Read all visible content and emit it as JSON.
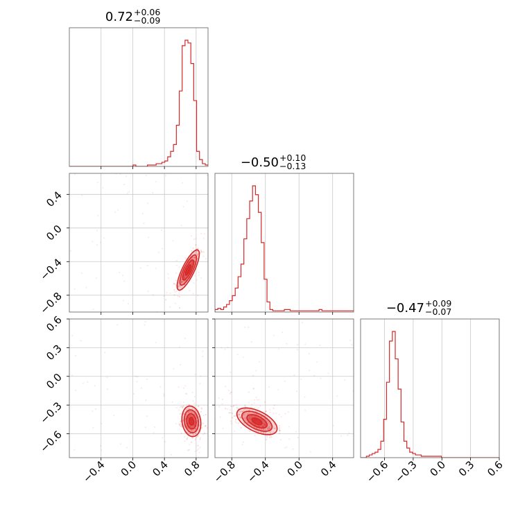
{
  "chart_data": {
    "type": "corner",
    "color": "#d62728",
    "parameters": [
      {
        "title": {
          "value": "0.72",
          "upper": "+0.06",
          "lower": "−0.09"
        },
        "range": [
          -0.8,
          0.95
        ],
        "ticks": [
          -0.4,
          0.0,
          0.4,
          0.8
        ],
        "tick_labels": [
          "−0.4",
          "0.0",
          "0.4",
          "0.8"
        ],
        "histogram": {
          "bin_start": -0.8,
          "bin_width": 0.0365,
          "counts": [
            0,
            0,
            0,
            0,
            0,
            0,
            0,
            0,
            0,
            0,
            0,
            0,
            0,
            0,
            0,
            0,
            0,
            0,
            0,
            0,
            0,
            0,
            1,
            0,
            0,
            0,
            0,
            1,
            1,
            1,
            2,
            2,
            3,
            4,
            7,
            11,
            16,
            30,
            55,
            88,
            92,
            90,
            75,
            48,
            11,
            5,
            2,
            1
          ]
        }
      },
      {
        "title": {
          "value": "−0.50",
          "upper": "+0.10",
          "lower": "−0.13"
        },
        "range": [
          -1.0,
          0.65
        ],
        "ticks": [
          -0.8,
          -0.4,
          0.0,
          0.4
        ],
        "tick_labels": [
          "−0.8",
          "−0.4",
          "0.0",
          "0.4"
        ],
        "histogram": {
          "bin_start": -1.0,
          "bin_width": 0.0344,
          "counts": [
            2,
            3,
            2,
            4,
            6,
            9,
            13,
            19,
            28,
            38,
            58,
            74,
            88,
            100,
            93,
            79,
            55,
            26,
            8,
            2,
            1,
            1,
            1,
            1,
            2,
            2,
            1,
            1,
            1,
            1,
            1,
            1,
            1,
            1,
            1,
            1,
            2,
            1,
            1,
            1,
            1,
            1,
            1,
            1,
            1,
            1,
            1,
            1
          ]
        }
      },
      {
        "title": {
          "value": "−0.47",
          "upper": "+0.09",
          "lower": "−0.07"
        },
        "range": [
          -0.85,
          0.6
        ],
        "ticks": [
          -0.6,
          -0.3,
          0.0,
          0.3,
          0.6
        ],
        "tick_labels": [
          "−0.6",
          "−0.3",
          "0.0",
          "0.3",
          "0.6"
        ],
        "histogram": {
          "bin_start": -0.85,
          "bin_width": 0.0302,
          "counts": [
            0,
            0,
            1,
            2,
            3,
            4,
            6,
            12,
            28,
            55,
            85,
            92,
            72,
            50,
            26,
            12,
            7,
            4,
            3,
            2,
            2,
            1,
            1,
            1,
            1,
            1,
            1,
            1,
            0,
            0,
            0,
            0,
            0,
            0,
            0,
            0,
            0,
            0,
            0,
            0,
            0,
            0,
            0,
            0,
            0,
            0,
            0,
            0
          ]
        }
      }
    ],
    "pairs": [
      {
        "x_param": 0,
        "y_param": 1,
        "center": [
          0.7,
          -0.5
        ],
        "spread": [
          0.07,
          0.12
        ],
        "correlation": 0.8
      },
      {
        "x_param": 0,
        "y_param": 2,
        "center": [
          0.74,
          -0.47
        ],
        "spread": [
          0.06,
          0.08
        ],
        "correlation": -0.15
      },
      {
        "x_param": 1,
        "y_param": 2,
        "center": [
          -0.5,
          -0.47
        ],
        "spread": [
          0.12,
          0.07
        ],
        "correlation": -0.55
      }
    ],
    "grid": true,
    "legend": "none"
  }
}
